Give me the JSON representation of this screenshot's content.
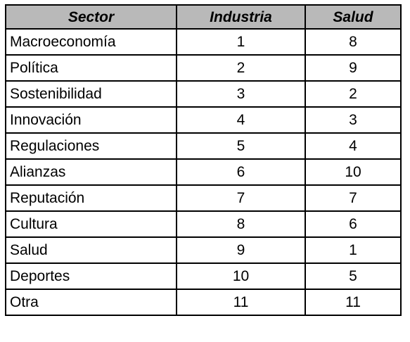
{
  "table": {
    "headers": [
      "Sector",
      "Industria",
      "Salud"
    ],
    "rows": [
      {
        "sector": "Macroeconomía",
        "industria": "1",
        "salud": "8"
      },
      {
        "sector": "Política",
        "industria": "2",
        "salud": "9"
      },
      {
        "sector": "Sostenibilidad",
        "industria": "3",
        "salud": "2"
      },
      {
        "sector": "Innovación",
        "industria": "4",
        "salud": "3"
      },
      {
        "sector": "Regulaciones",
        "industria": "5",
        "salud": "4"
      },
      {
        "sector": "Alianzas",
        "industria": "6",
        "salud": "10"
      },
      {
        "sector": "Reputación",
        "industria": "7",
        "salud": "7"
      },
      {
        "sector": "Cultura",
        "industria": "8",
        "salud": "6"
      },
      {
        "sector": "Salud",
        "industria": "9",
        "salud": "1"
      },
      {
        "sector": "Deportes",
        "industria": "10",
        "salud": "5"
      },
      {
        "sector": "Otra",
        "industria": "11",
        "salud": "11"
      }
    ]
  },
  "colors": {
    "header_background": "#b9b9b9",
    "border": "#000000",
    "text": "#000000"
  }
}
